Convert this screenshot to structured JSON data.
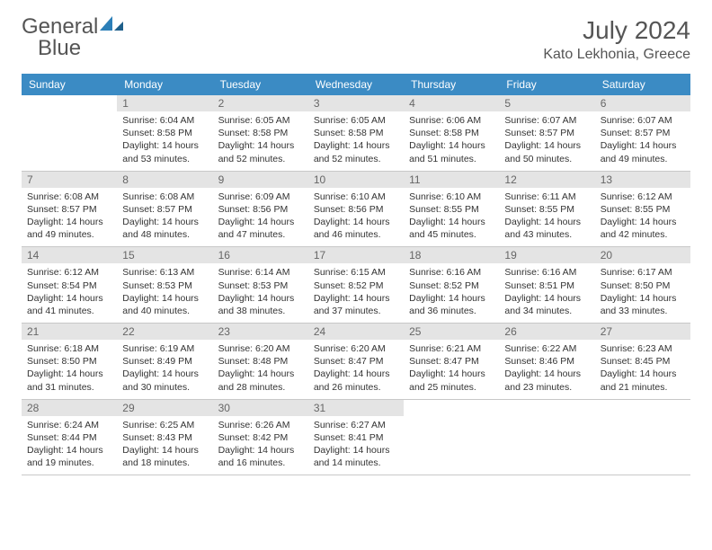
{
  "brand": {
    "part1": "General",
    "part2": "Blue"
  },
  "title": "July 2024",
  "location": "Kato Lekhonia, Greece",
  "colors": {
    "header_bg": "#3b8bc4",
    "header_text": "#ffffff",
    "daynum_bg": "#e4e4e4",
    "daynum_text": "#666666",
    "body_text": "#333333",
    "rule": "#c8c8c8",
    "logo_blue": "#2c7fb8"
  },
  "dayNames": [
    "Sunday",
    "Monday",
    "Tuesday",
    "Wednesday",
    "Thursday",
    "Friday",
    "Saturday"
  ],
  "weeks": [
    [
      {
        "n": "",
        "sr": "",
        "ss": "",
        "dl": ""
      },
      {
        "n": "1",
        "sr": "6:04 AM",
        "ss": "8:58 PM",
        "dl": "14 hours and 53 minutes."
      },
      {
        "n": "2",
        "sr": "6:05 AM",
        "ss": "8:58 PM",
        "dl": "14 hours and 52 minutes."
      },
      {
        "n": "3",
        "sr": "6:05 AM",
        "ss": "8:58 PM",
        "dl": "14 hours and 52 minutes."
      },
      {
        "n": "4",
        "sr": "6:06 AM",
        "ss": "8:58 PM",
        "dl": "14 hours and 51 minutes."
      },
      {
        "n": "5",
        "sr": "6:07 AM",
        "ss": "8:57 PM",
        "dl": "14 hours and 50 minutes."
      },
      {
        "n": "6",
        "sr": "6:07 AM",
        "ss": "8:57 PM",
        "dl": "14 hours and 49 minutes."
      }
    ],
    [
      {
        "n": "7",
        "sr": "6:08 AM",
        "ss": "8:57 PM",
        "dl": "14 hours and 49 minutes."
      },
      {
        "n": "8",
        "sr": "6:08 AM",
        "ss": "8:57 PM",
        "dl": "14 hours and 48 minutes."
      },
      {
        "n": "9",
        "sr": "6:09 AM",
        "ss": "8:56 PM",
        "dl": "14 hours and 47 minutes."
      },
      {
        "n": "10",
        "sr": "6:10 AM",
        "ss": "8:56 PM",
        "dl": "14 hours and 46 minutes."
      },
      {
        "n": "11",
        "sr": "6:10 AM",
        "ss": "8:55 PM",
        "dl": "14 hours and 45 minutes."
      },
      {
        "n": "12",
        "sr": "6:11 AM",
        "ss": "8:55 PM",
        "dl": "14 hours and 43 minutes."
      },
      {
        "n": "13",
        "sr": "6:12 AM",
        "ss": "8:55 PM",
        "dl": "14 hours and 42 minutes."
      }
    ],
    [
      {
        "n": "14",
        "sr": "6:12 AM",
        "ss": "8:54 PM",
        "dl": "14 hours and 41 minutes."
      },
      {
        "n": "15",
        "sr": "6:13 AM",
        "ss": "8:53 PM",
        "dl": "14 hours and 40 minutes."
      },
      {
        "n": "16",
        "sr": "6:14 AM",
        "ss": "8:53 PM",
        "dl": "14 hours and 38 minutes."
      },
      {
        "n": "17",
        "sr": "6:15 AM",
        "ss": "8:52 PM",
        "dl": "14 hours and 37 minutes."
      },
      {
        "n": "18",
        "sr": "6:16 AM",
        "ss": "8:52 PM",
        "dl": "14 hours and 36 minutes."
      },
      {
        "n": "19",
        "sr": "6:16 AM",
        "ss": "8:51 PM",
        "dl": "14 hours and 34 minutes."
      },
      {
        "n": "20",
        "sr": "6:17 AM",
        "ss": "8:50 PM",
        "dl": "14 hours and 33 minutes."
      }
    ],
    [
      {
        "n": "21",
        "sr": "6:18 AM",
        "ss": "8:50 PM",
        "dl": "14 hours and 31 minutes."
      },
      {
        "n": "22",
        "sr": "6:19 AM",
        "ss": "8:49 PM",
        "dl": "14 hours and 30 minutes."
      },
      {
        "n": "23",
        "sr": "6:20 AM",
        "ss": "8:48 PM",
        "dl": "14 hours and 28 minutes."
      },
      {
        "n": "24",
        "sr": "6:20 AM",
        "ss": "8:47 PM",
        "dl": "14 hours and 26 minutes."
      },
      {
        "n": "25",
        "sr": "6:21 AM",
        "ss": "8:47 PM",
        "dl": "14 hours and 25 minutes."
      },
      {
        "n": "26",
        "sr": "6:22 AM",
        "ss": "8:46 PM",
        "dl": "14 hours and 23 minutes."
      },
      {
        "n": "27",
        "sr": "6:23 AM",
        "ss": "8:45 PM",
        "dl": "14 hours and 21 minutes."
      }
    ],
    [
      {
        "n": "28",
        "sr": "6:24 AM",
        "ss": "8:44 PM",
        "dl": "14 hours and 19 minutes."
      },
      {
        "n": "29",
        "sr": "6:25 AM",
        "ss": "8:43 PM",
        "dl": "14 hours and 18 minutes."
      },
      {
        "n": "30",
        "sr": "6:26 AM",
        "ss": "8:42 PM",
        "dl": "14 hours and 16 minutes."
      },
      {
        "n": "31",
        "sr": "6:27 AM",
        "ss": "8:41 PM",
        "dl": "14 hours and 14 minutes."
      },
      {
        "n": "",
        "sr": "",
        "ss": "",
        "dl": ""
      },
      {
        "n": "",
        "sr": "",
        "ss": "",
        "dl": ""
      },
      {
        "n": "",
        "sr": "",
        "ss": "",
        "dl": ""
      }
    ]
  ],
  "labels": {
    "sunrise": "Sunrise:",
    "sunset": "Sunset:",
    "daylight": "Daylight:"
  }
}
